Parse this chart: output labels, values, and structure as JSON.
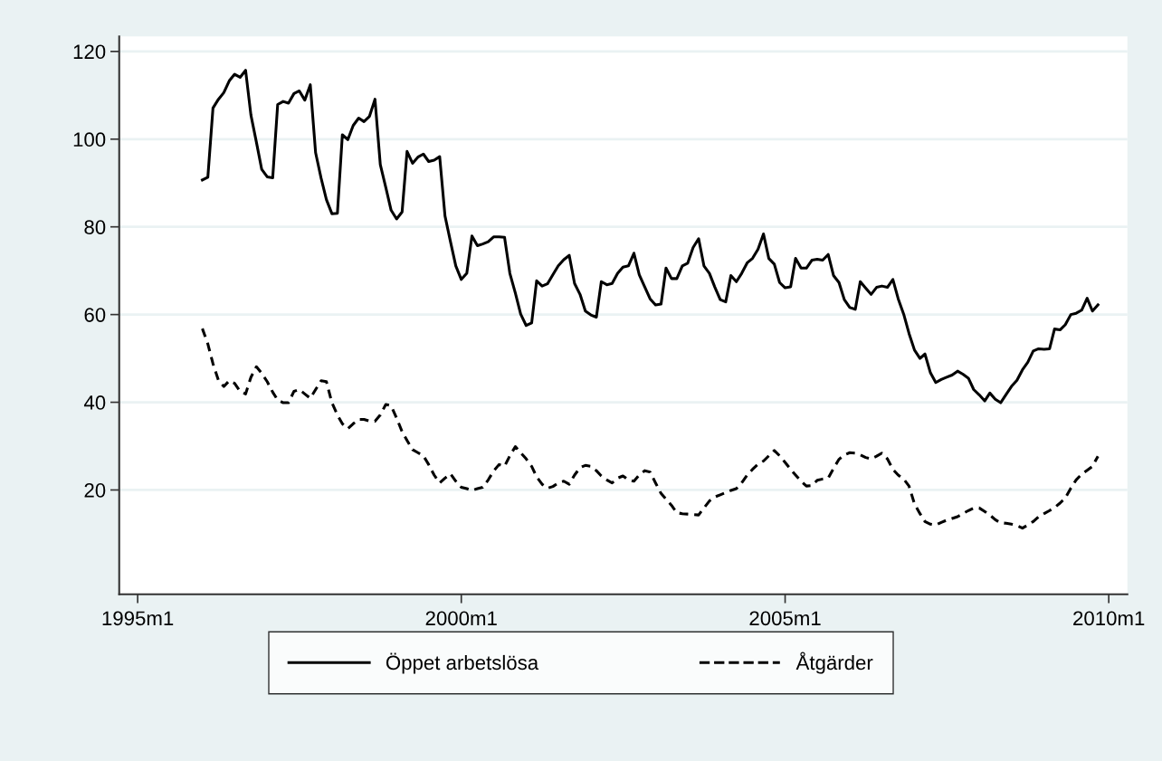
{
  "chart_data": {
    "type": "line",
    "x": [
      "1996-01",
      "1996-02",
      "1996-03",
      "1996-04",
      "1996-05",
      "1996-06",
      "1996-07",
      "1996-08",
      "1996-09",
      "1996-10",
      "1996-11",
      "1996-12",
      "1997-01",
      "1997-02",
      "1997-03",
      "1997-04",
      "1997-05",
      "1997-06",
      "1997-07",
      "1997-08",
      "1997-09",
      "1997-10",
      "1997-11",
      "1997-12",
      "1998-01",
      "1998-02",
      "1998-03",
      "1998-04",
      "1998-05",
      "1998-06",
      "1998-07",
      "1998-08",
      "1998-09",
      "1998-10",
      "1998-11",
      "1998-12",
      "1999-01",
      "1999-02",
      "1999-03",
      "1999-04",
      "1999-05",
      "1999-06",
      "1999-07",
      "1999-08",
      "1999-09",
      "1999-10",
      "1999-11",
      "1999-12",
      "2000-01",
      "2000-02",
      "2000-03",
      "2000-04",
      "2000-05",
      "2000-06",
      "2000-07",
      "2000-08",
      "2000-09",
      "2000-10",
      "2000-11",
      "2000-12",
      "2001-01",
      "2001-02",
      "2001-03",
      "2001-04",
      "2001-05",
      "2001-06",
      "2001-07",
      "2001-08",
      "2001-09",
      "2001-10",
      "2001-11",
      "2001-12",
      "2002-01",
      "2002-02",
      "2002-03",
      "2002-04",
      "2002-05",
      "2002-06",
      "2002-07",
      "2002-08",
      "2002-09",
      "2002-10",
      "2002-11",
      "2002-12",
      "2003-01",
      "2003-02",
      "2003-03",
      "2003-04",
      "2003-05",
      "2003-06",
      "2003-07",
      "2003-08",
      "2003-09",
      "2003-10",
      "2003-11",
      "2003-12",
      "2004-01",
      "2004-02",
      "2004-03",
      "2004-04",
      "2004-05",
      "2004-06",
      "2004-07",
      "2004-08",
      "2004-09",
      "2004-10",
      "2004-11",
      "2004-12",
      "2005-01",
      "2005-02",
      "2005-03",
      "2005-04",
      "2005-05",
      "2005-06",
      "2005-07",
      "2005-08",
      "2005-09",
      "2005-10",
      "2005-11",
      "2005-12",
      "2006-01",
      "2006-02",
      "2006-03",
      "2006-04",
      "2006-05",
      "2006-06",
      "2006-07",
      "2006-08",
      "2006-09",
      "2006-10",
      "2006-11",
      "2006-12",
      "2007-01",
      "2007-02",
      "2007-03",
      "2007-04",
      "2007-05",
      "2007-06",
      "2007-07",
      "2007-08",
      "2007-09",
      "2007-10",
      "2007-11",
      "2007-12",
      "2008-01",
      "2008-02",
      "2008-03",
      "2008-04",
      "2008-05",
      "2008-06",
      "2008-07",
      "2008-08",
      "2008-09",
      "2008-10",
      "2008-11",
      "2008-12",
      "2009-01",
      "2009-02",
      "2009-03",
      "2009-04",
      "2009-05",
      "2009-06",
      "2009-07",
      "2009-08",
      "2009-09",
      "2009-10",
      "2009-11"
    ],
    "series": [
      {
        "name": "Öppet arbetslösa",
        "color": "#000000",
        "line_style": "solid",
        "values": [
          90.7,
          91.3,
          107.1,
          109.1,
          110.6,
          113.3,
          114.8,
          114.1,
          115.7,
          105.5,
          99.3,
          93.1,
          91.4,
          91.2,
          107.9,
          108.6,
          108.2,
          110.4,
          111.0,
          108.9,
          112.4,
          96.9,
          91.1,
          86.2,
          83.0,
          83.1,
          101.0,
          99.9,
          103.1,
          104.8,
          104.0,
          105.2,
          109.1,
          94.2,
          89.0,
          83.8,
          81.8,
          83.4,
          97.2,
          94.5,
          95.9,
          96.6,
          94.9,
          95.2,
          96.0,
          82.5,
          76.6,
          71.1,
          68.0,
          69.4,
          77.9,
          75.7,
          76.1,
          76.6,
          77.7,
          77.7,
          77.6,
          69.4,
          64.9,
          60.1,
          57.5,
          58.1,
          67.7,
          66.5,
          67.0,
          69.1,
          71.1,
          72.5,
          73.5,
          67.1,
          64.6,
          60.8,
          59.9,
          59.4,
          67.5,
          66.8,
          67.1,
          69.4,
          70.8,
          71.1,
          74.0,
          69.1,
          66.3,
          63.6,
          62.2,
          62.4,
          70.6,
          68.2,
          68.2,
          71.1,
          71.7,
          75.3,
          77.3,
          71.1,
          69.4,
          66.3,
          63.4,
          62.9,
          68.9,
          67.5,
          69.4,
          71.8,
          72.8,
          74.9,
          78.4,
          72.8,
          71.5,
          67.3,
          66.1,
          66.3,
          72.8,
          70.6,
          70.6,
          72.4,
          72.6,
          72.4,
          73.7,
          68.9,
          67.3,
          63.4,
          61.6,
          61.2,
          67.5,
          66.0,
          64.6,
          66.2,
          66.5,
          66.2,
          68.0,
          63.6,
          60.1,
          55.7,
          51.9,
          50.0,
          51.0,
          46.7,
          44.5,
          45.2,
          45.7,
          46.2,
          47.1,
          46.4,
          45.5,
          42.9,
          41.7,
          40.3,
          42.1,
          40.7,
          39.9,
          41.8,
          43.6,
          45.0,
          47.4,
          49.1,
          51.7,
          52.2,
          52.1,
          52.2,
          56.7,
          56.5,
          57.7,
          60.0,
          60.3,
          61.0,
          63.7,
          60.8,
          62.2
        ]
      },
      {
        "name": "Åtgärder",
        "color": "#000000",
        "line_style": "dashed",
        "values": [
          56.8,
          53.3,
          48.8,
          45.0,
          43.6,
          44.9,
          44.3,
          42.5,
          41.9,
          45.7,
          48.1,
          46.6,
          44.7,
          42.3,
          40.5,
          39.9,
          39.9,
          42.5,
          42.9,
          41.9,
          40.9,
          42.9,
          44.9,
          44.7,
          39.9,
          37.1,
          35.1,
          34.0,
          35.1,
          36.1,
          36.1,
          35.7,
          35.7,
          37.1,
          39.5,
          39.2,
          36.4,
          33.3,
          31.3,
          29.2,
          28.5,
          27.8,
          25.8,
          23.4,
          21.6,
          22.7,
          23.7,
          22.0,
          20.6,
          20.3,
          19.9,
          20.3,
          20.6,
          22.3,
          24.3,
          25.8,
          25.4,
          27.8,
          29.9,
          28.5,
          27.1,
          25.4,
          23.0,
          21.3,
          20.4,
          20.8,
          21.6,
          22.0,
          21.3,
          23.4,
          25.1,
          25.6,
          25.4,
          24.4,
          23.2,
          22.3,
          21.6,
          22.7,
          23.2,
          22.3,
          22.0,
          23.4,
          24.4,
          24.1,
          21.6,
          19.2,
          17.9,
          16.5,
          14.8,
          14.6,
          14.5,
          14.4,
          14.3,
          15.9,
          17.5,
          18.4,
          18.9,
          19.4,
          19.9,
          20.3,
          21.6,
          23.4,
          24.7,
          25.9,
          26.6,
          27.8,
          29.0,
          27.8,
          26.3,
          24.7,
          23.4,
          22.0,
          20.9,
          21.0,
          22.2,
          22.5,
          22.7,
          24.9,
          27.0,
          28.0,
          28.5,
          28.4,
          28.0,
          27.4,
          27.1,
          27.7,
          28.4,
          27.1,
          24.7,
          23.4,
          22.5,
          20.9,
          16.8,
          14.6,
          12.8,
          12.2,
          12.0,
          12.6,
          13.1,
          13.5,
          13.9,
          14.6,
          15.3,
          15.9,
          15.9,
          15.1,
          14.3,
          13.2,
          12.5,
          12.4,
          12.2,
          11.9,
          11.3,
          12.0,
          12.8,
          13.9,
          14.6,
          15.3,
          16.0,
          17.0,
          18.2,
          20.4,
          22.3,
          23.6,
          24.5,
          25.4,
          27.7
        ]
      }
    ],
    "xlim": [
      "1994-09-19",
      "2010-04-16"
    ],
    "xticks": [
      {
        "value": "1995-01",
        "label": "1995m1"
      },
      {
        "value": "2000-01",
        "label": "2000m1"
      },
      {
        "value": "2005-01",
        "label": "2005m1"
      },
      {
        "value": "2010-01",
        "label": "2010m1"
      }
    ],
    "ylim": [
      -3.8,
      123.4
    ],
    "yticks": [
      20,
      40,
      60,
      80,
      100,
      120
    ],
    "grid": "y",
    "legend": "bottom"
  }
}
